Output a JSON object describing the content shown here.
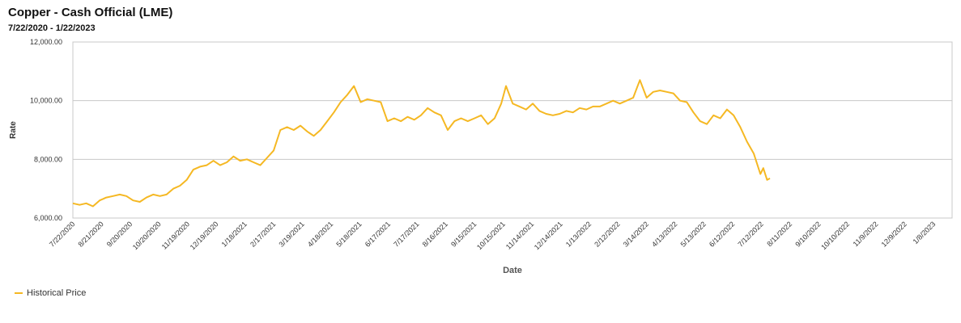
{
  "chart_data": {
    "type": "line",
    "title": "Copper - Cash Official (LME)",
    "subtitle": "7/22/2020 - 1/22/2023",
    "xlabel": "Date",
    "ylabel": "Rate",
    "ylim": [
      6000,
      12000
    ],
    "y_ticks": [
      6000,
      8000,
      10000,
      12000
    ],
    "y_tick_labels": [
      "6,000.00",
      "8,000.00",
      "10,000.00",
      "12,000.00"
    ],
    "x_range": [
      "7/22/2020",
      "1/22/2023"
    ],
    "x_tick_labels": [
      "7/22/2020",
      "8/21/2020",
      "9/20/2020",
      "10/20/2020",
      "11/19/2020",
      "12/19/2020",
      "1/18/2021",
      "2/17/2021",
      "3/19/2021",
      "4/18/2021",
      "5/18/2021",
      "6/17/2021",
      "7/17/2021",
      "8/16/2021",
      "9/15/2021",
      "10/15/2021",
      "11/14/2021",
      "12/14/2021",
      "1/13/2022",
      "2/12/2022",
      "3/14/2022",
      "4/13/2022",
      "5/13/2022",
      "6/12/2022",
      "7/12/2022",
      "8/11/2022",
      "9/10/2022",
      "10/10/2022",
      "11/9/2022",
      "12/9/2022",
      "1/8/2023"
    ],
    "grid": "horizontal",
    "legend_position": "bottom-left",
    "series": [
      {
        "name": "Historical Price",
        "color": "#f5b823",
        "x": [
          "7/22/2020",
          "7/29/2020",
          "8/5/2020",
          "8/12/2020",
          "8/19/2020",
          "8/26/2020",
          "9/2/2020",
          "9/9/2020",
          "9/16/2020",
          "9/23/2020",
          "9/30/2020",
          "10/7/2020",
          "10/14/2020",
          "10/21/2020",
          "10/28/2020",
          "11/4/2020",
          "11/11/2020",
          "11/18/2020",
          "11/25/2020",
          "12/2/2020",
          "12/9/2020",
          "12/16/2020",
          "12/23/2020",
          "12/30/2020",
          "1/6/2021",
          "1/13/2021",
          "1/20/2021",
          "1/27/2021",
          "2/3/2021",
          "2/10/2021",
          "2/17/2021",
          "2/24/2021",
          "3/3/2021",
          "3/10/2021",
          "3/17/2021",
          "3/24/2021",
          "3/31/2021",
          "4/7/2021",
          "4/14/2021",
          "4/21/2021",
          "4/28/2021",
          "5/5/2021",
          "5/12/2021",
          "5/19/2021",
          "5/26/2021",
          "6/2/2021",
          "6/9/2021",
          "6/16/2021",
          "6/23/2021",
          "6/30/2021",
          "7/7/2021",
          "7/14/2021",
          "7/21/2021",
          "7/28/2021",
          "8/4/2021",
          "8/11/2021",
          "8/18/2021",
          "8/25/2021",
          "9/1/2021",
          "9/8/2021",
          "9/15/2021",
          "9/22/2021",
          "9/29/2021",
          "10/6/2021",
          "10/13/2021",
          "10/18/2021",
          "10/25/2021",
          "11/1/2021",
          "11/8/2021",
          "11/15/2021",
          "11/22/2021",
          "11/29/2021",
          "12/6/2021",
          "12/13/2021",
          "12/20/2021",
          "12/27/2021",
          "1/3/2022",
          "1/10/2022",
          "1/17/2022",
          "1/24/2022",
          "1/31/2022",
          "2/7/2022",
          "2/14/2022",
          "2/21/2022",
          "2/28/2022",
          "3/4/2022",
          "3/7/2022",
          "3/14/2022",
          "3/21/2022",
          "3/28/2022",
          "4/4/2022",
          "4/11/2022",
          "4/18/2022",
          "4/25/2022",
          "5/2/2022",
          "5/9/2022",
          "5/16/2022",
          "5/23/2022",
          "5/30/2022",
          "6/6/2022",
          "6/13/2022",
          "6/20/2022",
          "6/27/2022",
          "7/4/2022",
          "7/11/2022",
          "7/14/2022",
          "7/18/2022",
          "7/21/2022"
        ],
        "values": [
          6500,
          6450,
          6500,
          6400,
          6600,
          6700,
          6750,
          6800,
          6750,
          6600,
          6550,
          6700,
          6800,
          6750,
          6800,
          7000,
          7100,
          7300,
          7650,
          7750,
          7800,
          7950,
          7800,
          7900,
          8100,
          7950,
          8000,
          7900,
          7800,
          8050,
          8300,
          9000,
          9100,
          9000,
          9150,
          8950,
          8800,
          9000,
          9300,
          9600,
          9950,
          10200,
          10500,
          9950,
          10050,
          10000,
          9950,
          9300,
          9400,
          9300,
          9450,
          9350,
          9500,
          9750,
          9600,
          9500,
          9000,
          9300,
          9400,
          9300,
          9400,
          9500,
          9200,
          9400,
          9900,
          10500,
          9900,
          9800,
          9700,
          9900,
          9650,
          9550,
          9500,
          9550,
          9650,
          9600,
          9750,
          9700,
          9800,
          9800,
          9900,
          10000,
          9900,
          10000,
          10100,
          10450,
          10700,
          10100,
          10300,
          10350,
          10300,
          10250,
          10000,
          9950,
          9600,
          9300,
          9200,
          9500,
          9400,
          9700,
          9500,
          9100,
          8600,
          8200,
          7500,
          7700,
          7300,
          7350
        ]
      }
    ]
  },
  "legend": {
    "label": "Historical Price"
  }
}
